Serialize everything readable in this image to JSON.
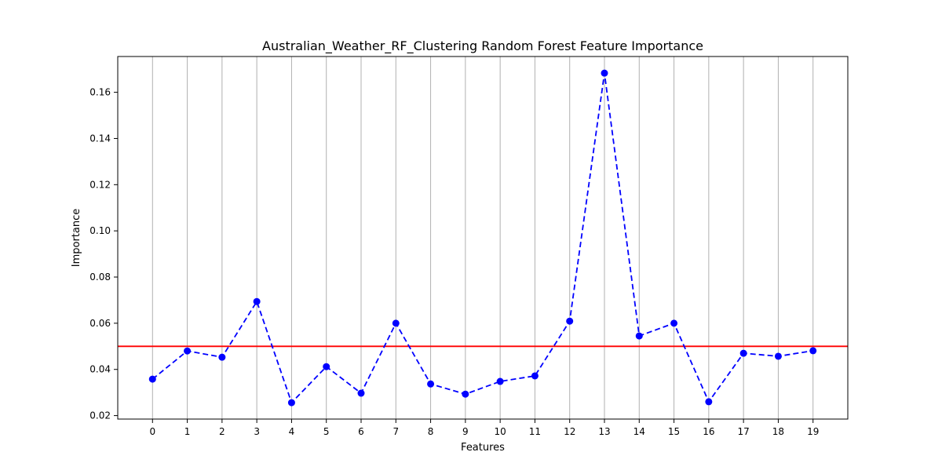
{
  "chart_data": {
    "type": "line",
    "title": "Australian_Weather_RF_Clustering Random Forest Feature Importance",
    "xlabel": "Features",
    "ylabel": "Importance",
    "x": [
      0,
      1,
      2,
      3,
      4,
      5,
      6,
      7,
      8,
      9,
      10,
      11,
      12,
      13,
      14,
      15,
      16,
      17,
      18,
      19
    ],
    "x_tick_labels": [
      "0",
      "1",
      "2",
      "3",
      "4",
      "5",
      "6",
      "7",
      "8",
      "9",
      "10",
      "11",
      "12",
      "13",
      "14",
      "15",
      "16",
      "17",
      "18",
      "19"
    ],
    "y_ticks": [
      0.02,
      0.04,
      0.06,
      0.08,
      0.1,
      0.12,
      0.14,
      0.16
    ],
    "y_tick_labels": [
      "0.02",
      "0.04",
      "0.06",
      "0.08",
      "0.10",
      "0.12",
      "0.14",
      "0.16"
    ],
    "xlim": [
      -1,
      20
    ],
    "ylim": [
      0.0185,
      0.1755
    ],
    "grid": "vertical",
    "series": [
      {
        "values": [
          0.0358,
          0.048,
          0.0453,
          0.0694,
          0.0256,
          0.0412,
          0.0297,
          0.06,
          0.0337,
          0.0293,
          0.0348,
          0.0372,
          0.0609,
          0.1683,
          0.0545,
          0.06,
          0.026,
          0.047,
          0.0457,
          0.0481
        ],
        "color": "#0000ff",
        "line_style": "dashed",
        "marker": "circle"
      }
    ],
    "threshold": {
      "value": 0.05,
      "color": "#ff0000"
    },
    "colors": {
      "grid": "#b0b0b0",
      "axes": "#000000",
      "background": "#ffffff"
    }
  }
}
